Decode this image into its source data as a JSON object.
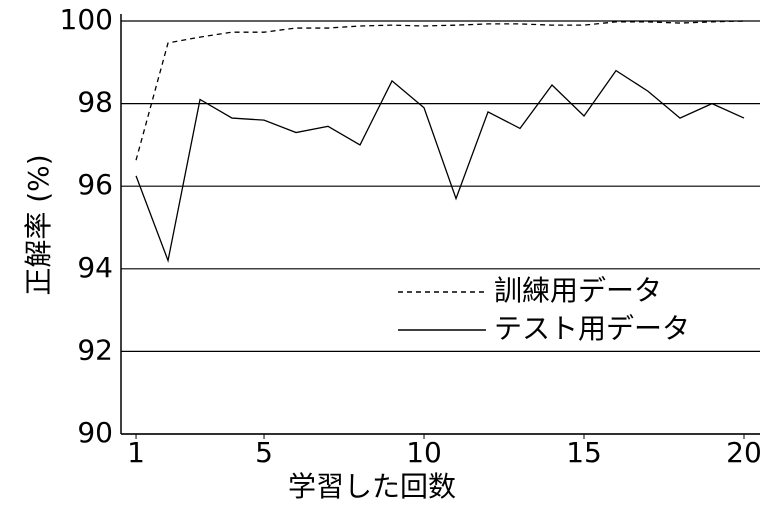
{
  "chart_data": {
    "type": "line",
    "x_label": "学習した回数",
    "y_label": "正解率 (%)",
    "x": [
      1,
      2,
      3,
      4,
      5,
      6,
      7,
      8,
      9,
      10,
      11,
      12,
      13,
      14,
      15,
      16,
      17,
      18,
      19,
      20
    ],
    "series": [
      {
        "name": "訓練用データ",
        "color": "#000000",
        "dash": "dashed",
        "values": [
          96.63,
          99.47,
          99.61,
          99.73,
          99.73,
          99.83,
          99.83,
          99.88,
          99.9,
          99.88,
          99.9,
          99.93,
          99.93,
          99.9,
          99.9,
          99.98,
          99.98,
          99.95,
          99.98,
          100
        ]
      },
      {
        "name": "テスト用データ",
        "color": "#000000",
        "dash": "solid",
        "values": [
          96.25,
          94.2,
          98.1,
          97.65,
          97.6,
          97.3,
          97.45,
          97.0,
          98.55,
          97.9,
          95.7,
          97.8,
          97.4,
          98.45,
          97.7,
          98.8,
          98.3,
          97.65,
          98.0,
          97.65
        ]
      }
    ],
    "xlim": [
      0.53,
      20.5
    ],
    "ylim": [
      90,
      100.17
    ],
    "xticks": [
      1,
      5,
      10,
      15,
      20
    ],
    "yticks": [
      90,
      92,
      94,
      96,
      98,
      100
    ],
    "grid": "y",
    "legend": "right"
  }
}
